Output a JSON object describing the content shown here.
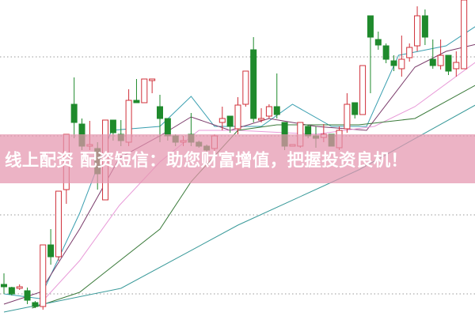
{
  "banner": {
    "text": "线上配资 配资短信：助您财富增值，把握投资良机！"
  },
  "colors": {
    "up": "#d0303a",
    "down": "#1f8a2c",
    "grid": "#9a9a9a",
    "banner": "#e496af"
  },
  "chart_data": {
    "type": "candlestick",
    "title": "",
    "xlabel": "",
    "ylabel": "",
    "grid": true,
    "ylim": [
      0,
      40
    ],
    "gridlines": [
      2.8,
      12.8,
      22.8,
      32.8
    ],
    "candles_ohlc": [
      [
        4.0,
        5.4,
        2.8,
        3.7
      ],
      [
        3.6,
        3.7,
        2.6,
        2.8
      ],
      [
        3.5,
        4.0,
        3.3,
        3.7
      ],
      [
        3.2,
        3.6,
        1.5,
        2.0
      ],
      [
        1.7,
        1.9,
        1.0,
        1.2
      ],
      [
        1.2,
        9.0,
        0.8,
        9.0
      ],
      [
        9.0,
        11.0,
        6.5,
        7.5
      ],
      [
        7.5,
        15.8,
        7.0,
        15.8
      ],
      [
        16.0,
        23.0,
        14.2,
        23.0
      ],
      [
        26.8,
        30.2,
        22.5,
        24.5
      ],
      [
        24.3,
        25.0,
        21.0,
        21.5
      ],
      [
        21.5,
        24.7,
        21.0,
        21.7
      ],
      [
        21.2,
        22.0,
        16.0,
        18.0
      ],
      [
        14.7,
        24.8,
        14.7,
        24.8
      ],
      [
        24.8,
        24.8,
        22.2,
        23.2
      ],
      [
        23.0,
        24.8,
        21.5,
        22.2
      ],
      [
        22.0,
        28.7,
        21.5,
        27.3
      ],
      [
        27.3,
        30.0,
        27.0,
        27.0
      ],
      [
        27.0,
        30.0,
        27.0,
        30.0
      ],
      [
        29.8,
        30.0,
        28.2,
        30.0
      ],
      [
        26.5,
        28.0,
        22.0,
        25.0
      ],
      [
        25.0,
        25.0,
        22.2,
        22.8
      ],
      [
        22.8,
        23.0,
        21.5,
        22.0
      ],
      [
        22.0,
        22.8,
        21.5,
        22.2
      ],
      [
        23.0,
        25.7,
        21.5,
        22.0
      ],
      [
        22.0,
        22.2,
        21.3,
        21.5
      ],
      [
        21.5,
        21.7,
        20.8,
        21.0
      ],
      [
        21.2,
        23.0,
        20.5,
        22.8
      ],
      [
        24.5,
        26.5,
        23.5,
        25.0
      ],
      [
        25.3,
        25.3,
        23.2,
        24.0
      ],
      [
        23.7,
        27.7,
        23.0,
        26.7
      ],
      [
        26.8,
        31.0,
        26.5,
        31.0
      ],
      [
        33.7,
        35.3,
        24.5,
        25.0
      ],
      [
        24.8,
        26.3,
        24.5,
        25.0
      ],
      [
        25.3,
        26.8,
        25.0,
        26.5
      ],
      [
        26.5,
        30.7,
        25.0,
        25.5
      ],
      [
        24.5,
        24.5,
        21.0,
        21.5
      ],
      [
        21.5,
        21.7,
        21.5,
        21.7
      ],
      [
        21.5,
        24.5,
        21.3,
        24.5
      ],
      [
        24.0,
        24.2,
        22.5,
        22.8
      ],
      [
        22.8,
        24.0,
        21.3,
        22.5
      ],
      [
        22.6,
        24.3,
        22.0,
        23.0
      ],
      [
        23.0,
        23.0,
        21.5,
        21.5
      ],
      [
        21.3,
        24.0,
        21.0,
        23.5
      ],
      [
        23.7,
        28.2,
        23.2,
        26.8
      ],
      [
        27.0,
        27.0,
        25.0,
        25.5
      ],
      [
        25.5,
        31.7,
        25.5,
        31.7
      ],
      [
        38.0,
        38.0,
        28.2,
        35.3
      ],
      [
        35.0,
        36.0,
        33.7,
        34.3
      ],
      [
        34.2,
        34.5,
        32.0,
        32.5
      ],
      [
        32.3,
        33.0,
        31.0,
        31.7
      ],
      [
        31.3,
        35.5,
        30.3,
        32.5
      ],
      [
        32.7,
        34.5,
        32.2,
        34.0
      ],
      [
        34.2,
        39.2,
        33.5,
        38.0
      ],
      [
        38.0,
        38.8,
        34.3,
        35.3
      ],
      [
        32.5,
        35.0,
        31.3,
        31.7
      ],
      [
        31.7,
        35.0,
        31.2,
        33.0
      ],
      [
        33.0,
        33.0,
        30.5,
        31.0
      ],
      [
        31.3,
        33.5,
        30.3,
        32.1
      ],
      [
        31.3,
        40.0,
        31.3,
        40.0
      ]
    ],
    "moving_averages": [
      {
        "color": "#3a9fb0",
        "points": [
          [
            0,
            2.8
          ],
          [
            4.6,
            2.2
          ],
          [
            9.7,
            13.0
          ],
          [
            13.8,
            23.5
          ],
          [
            20,
            24.0
          ],
          [
            24,
            27.8
          ],
          [
            27,
            24.0
          ],
          [
            33,
            24.0
          ],
          [
            37,
            26.8
          ],
          [
            42,
            24.0
          ],
          [
            46.5,
            24.0
          ],
          [
            50.6,
            33.0
          ],
          [
            56.7,
            34.2
          ],
          [
            61,
            37.0
          ]
        ]
      },
      {
        "color": "#7a3a6a",
        "points": [
          [
            0,
            1.5
          ],
          [
            4.6,
            3.0
          ],
          [
            9.7,
            11.0
          ],
          [
            14.8,
            20.0
          ],
          [
            20,
            22.8
          ],
          [
            24,
            25.2
          ],
          [
            29,
            23.5
          ],
          [
            34,
            25.0
          ],
          [
            40,
            24.0
          ],
          [
            46.5,
            23.5
          ],
          [
            52.7,
            31.5
          ],
          [
            56.7,
            33.5
          ],
          [
            61,
            34.5
          ]
        ]
      },
      {
        "color": "#e89ad8",
        "points": [
          [
            4.6,
            1.5
          ],
          [
            9.7,
            7.0
          ],
          [
            14.8,
            14.0
          ],
          [
            20,
            19.5
          ],
          [
            25,
            23.5
          ],
          [
            30,
            23.5
          ],
          [
            40,
            23.0
          ],
          [
            47.5,
            24.0
          ],
          [
            52.7,
            26.5
          ],
          [
            61,
            32.5
          ]
        ]
      },
      {
        "color": "#3a7a3a",
        "points": [
          [
            3.6,
            1.0
          ],
          [
            9.7,
            3.0
          ],
          [
            20,
            11.0
          ],
          [
            24,
            17.0
          ],
          [
            30,
            23.5
          ],
          [
            35,
            24.2
          ],
          [
            45.5,
            24.2
          ],
          [
            52.7,
            25.0
          ],
          [
            61,
            29.5
          ]
        ]
      },
      {
        "color": "#3a9a9a",
        "points": [
          [
            0,
            0.5
          ],
          [
            15,
            3.5
          ],
          [
            30,
            11.5
          ],
          [
            45.5,
            18.5
          ],
          [
            61,
            27.0
          ]
        ]
      }
    ]
  }
}
